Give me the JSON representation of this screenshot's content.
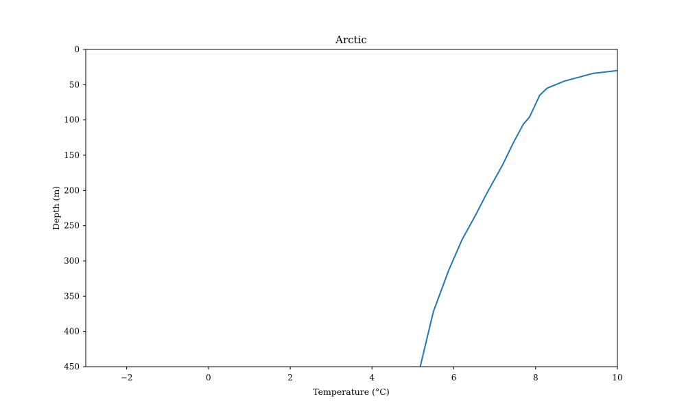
{
  "chart_data": {
    "type": "line",
    "title": "Arctic",
    "xlabel": "Temperature (°C)",
    "ylabel": "Depth (m)",
    "xlim": [
      -3,
      10
    ],
    "ylim": [
      450,
      0
    ],
    "y_inverted": true,
    "grid": false,
    "xticks": [
      -2,
      0,
      2,
      4,
      6,
      8,
      10
    ],
    "yticks": [
      0,
      50,
      100,
      150,
      200,
      250,
      300,
      350,
      400,
      450
    ],
    "xtick_labels": [
      "−2",
      "0",
      "2",
      "4",
      "6",
      "8",
      "10"
    ],
    "ytick_labels": [
      "0",
      "50",
      "100",
      "150",
      "200",
      "250",
      "300",
      "350",
      "400",
      "450"
    ],
    "color": "#1f77b4",
    "series": [
      {
        "x": [
          10.0,
          9.4,
          8.7,
          8.28,
          8.1,
          7.98,
          7.85,
          7.7,
          7.45,
          7.2,
          7.0,
          6.78,
          6.55,
          6.2,
          5.87,
          5.5,
          5.17
        ],
        "y": [
          30,
          34,
          45,
          55,
          65,
          80,
          96,
          106,
          133,
          163,
          184,
          207,
          233,
          270,
          314,
          372,
          452
        ]
      }
    ]
  }
}
